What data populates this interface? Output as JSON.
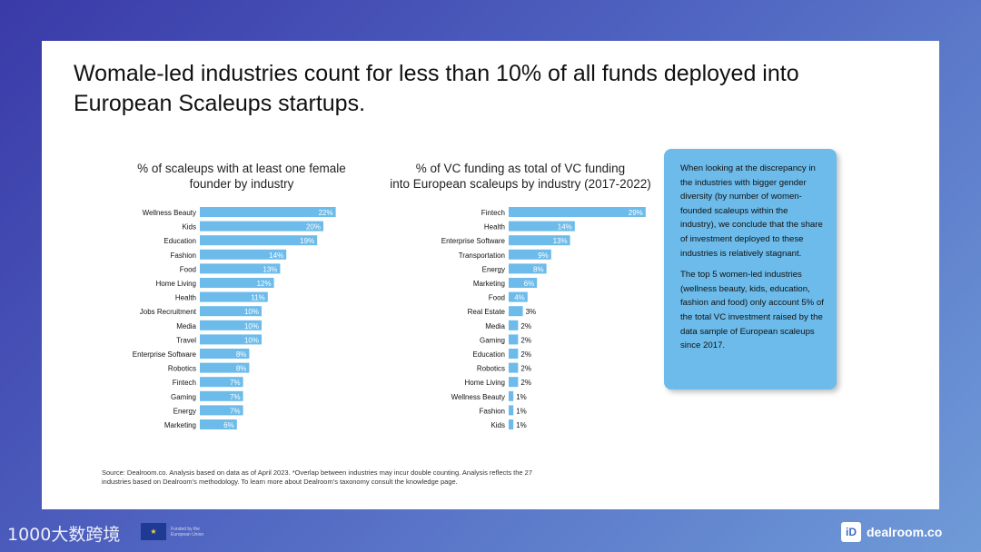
{
  "title": "Womale-led industries count for less than 10% of all funds deployed into European Scaleups startups.",
  "chart_data": [
    {
      "type": "bar",
      "orientation": "horizontal",
      "title": "% of scaleups with at least one female founder by industry",
      "title_lines": [
        "% of scaleups with at least one female",
        "founder by industry"
      ],
      "categories": [
        "Wellness Beauty",
        "Kids",
        "Education",
        "Fashion",
        "Food",
        "Home Living",
        "Health",
        "Jobs Recruitment",
        "Media",
        "Travel",
        "Enterprise Software",
        "Robotics",
        "Fintech",
        "Gaming",
        "Energy",
        "Marketing"
      ],
      "values": [
        22,
        20,
        19,
        14,
        13,
        12,
        11,
        10,
        10,
        10,
        8,
        8,
        7,
        7,
        7,
        6
      ],
      "labels": [
        "22%",
        "20%",
        "19%",
        "14%",
        "13%",
        "12%",
        "11%",
        "10%",
        "10%",
        "10%",
        "8%",
        "8%",
        "7%",
        "7%",
        "7%",
        "6%"
      ],
      "unit": "%",
      "xlim": [
        0,
        32
      ],
      "color": "#6cbbea"
    },
    {
      "type": "bar",
      "orientation": "horizontal",
      "title": "% of VC funding as total of VC funding into European scaleups by industry (2017-2022)",
      "title_lines": [
        "% of VC funding as total of VC funding",
        "into European scaleups by industry  (2017-2022)"
      ],
      "categories": [
        "Fintech",
        "Health",
        "Enterprise Software",
        "Transportation",
        "Energy",
        "Marketing",
        "Food",
        "Real Estate",
        "Media",
        "Gaming",
        "Education",
        "Robotics",
        "Home Living",
        "Wellness Beauty",
        "Fashion",
        "Kids"
      ],
      "values": [
        29,
        14,
        13,
        9,
        8,
        6,
        4,
        3,
        2,
        2,
        2,
        2,
        2,
        1,
        1,
        1
      ],
      "labels": [
        "29%",
        "14%",
        "13%",
        "9%",
        "8%",
        "6%",
        "4%",
        "3%",
        "2%",
        "2%",
        "2%",
        "2%",
        "2%",
        "1%",
        "1%",
        "1%"
      ],
      "unit": "%",
      "xlim": [
        0,
        33
      ],
      "color": "#6cbbea"
    }
  ],
  "callout": {
    "p1": "When looking at the discrepancy in the industries with bigger gender diversity (by number of women-founded  scaleups within the industry), we conclude that the share of investment deployed to these industries is relatively stagnant.",
    "p2": "The top 5 women-led  industries (wellness beauty, kids, education, fashion and food) only account 5% of the total VC investment raised by the data sample of European scaleups since 2017."
  },
  "source": "Source: Dealroom.co. Analysis based on data as of April 2023. *Overlap between industries may incur double counting. Analysis reflects the 27 industries based on Dealroom’s methodology. To learn more about Dealroom’s taxonomy consult the knowledge page.",
  "footer": {
    "watermark": "1000大数跨境",
    "eu_text": "Funded by the European Union",
    "brand_logo": "iD",
    "brand": "dealroom.co"
  }
}
